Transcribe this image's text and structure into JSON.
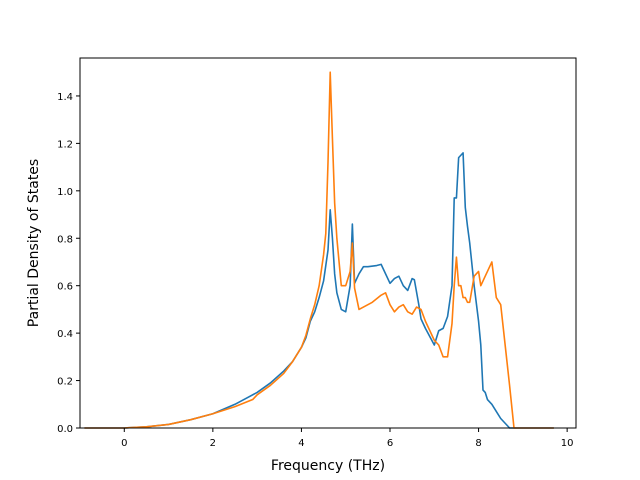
{
  "chart_data": {
    "type": "line",
    "title": "",
    "xlabel": "Frequency (THz)",
    "ylabel": "Partial Density of States",
    "xlim": [
      -1.0,
      10.2
    ],
    "ylim": [
      0.0,
      1.56
    ],
    "xticks": [
      0,
      2,
      4,
      6,
      8,
      10
    ],
    "yticks": [
      0.0,
      0.2,
      0.4,
      0.6,
      0.8,
      1.0,
      1.2,
      1.4
    ],
    "xtick_labels": [
      "0",
      "2",
      "4",
      "6",
      "8",
      "10"
    ],
    "ytick_labels": [
      "0.0",
      "0.2",
      "0.4",
      "0.6",
      "0.8",
      "1.0",
      "1.2",
      "1.4"
    ],
    "grid": false,
    "legend": "none",
    "series": [
      {
        "color": "#1f77b4",
        "x": [
          -0.9,
          0.0,
          0.5,
          1.0,
          1.5,
          2.0,
          2.5,
          2.8,
          3.0,
          3.3,
          3.6,
          3.8,
          4.0,
          4.1,
          4.2,
          4.3,
          4.4,
          4.5,
          4.6,
          4.65,
          4.7,
          4.75,
          4.8,
          4.9,
          5.0,
          5.1,
          5.15,
          5.2,
          5.3,
          5.4,
          5.5,
          5.7,
          5.8,
          6.0,
          6.1,
          6.2,
          6.3,
          6.4,
          6.5,
          6.55,
          6.65,
          6.7,
          6.8,
          7.0,
          7.1,
          7.2,
          7.3,
          7.4,
          7.45,
          7.5,
          7.55,
          7.6,
          7.65,
          7.7,
          7.75,
          7.8,
          7.9,
          8.0,
          8.05,
          8.1,
          8.15,
          8.2,
          8.3,
          8.4,
          8.5,
          8.6,
          8.7,
          8.8,
          9.0,
          9.7
        ],
        "y": [
          0.0,
          0.0,
          0.005,
          0.015,
          0.035,
          0.06,
          0.1,
          0.13,
          0.15,
          0.19,
          0.24,
          0.28,
          0.34,
          0.38,
          0.45,
          0.49,
          0.55,
          0.62,
          0.75,
          0.92,
          0.8,
          0.65,
          0.57,
          0.5,
          0.49,
          0.6,
          0.86,
          0.61,
          0.65,
          0.68,
          0.68,
          0.685,
          0.69,
          0.61,
          0.63,
          0.64,
          0.6,
          0.58,
          0.63,
          0.625,
          0.52,
          0.46,
          0.42,
          0.35,
          0.41,
          0.42,
          0.47,
          0.6,
          0.97,
          0.97,
          1.14,
          1.15,
          1.16,
          0.93,
          0.85,
          0.78,
          0.6,
          0.45,
          0.35,
          0.16,
          0.15,
          0.12,
          0.1,
          0.07,
          0.04,
          0.02,
          0.0,
          0.0,
          0.0,
          0.0
        ]
      },
      {
        "color": "#ff7f0e",
        "x": [
          -0.9,
          0.0,
          0.5,
          1.0,
          1.5,
          2.0,
          2.5,
          2.9,
          3.0,
          3.3,
          3.6,
          3.8,
          4.0,
          4.1,
          4.2,
          4.3,
          4.4,
          4.5,
          4.55,
          4.6,
          4.65,
          4.7,
          4.75,
          4.8,
          4.9,
          5.0,
          5.1,
          5.15,
          5.2,
          5.3,
          5.4,
          5.6,
          5.8,
          5.9,
          6.0,
          6.1,
          6.2,
          6.3,
          6.4,
          6.5,
          6.6,
          6.7,
          6.8,
          7.0,
          7.1,
          7.2,
          7.3,
          7.4,
          7.45,
          7.5,
          7.55,
          7.6,
          7.65,
          7.7,
          7.75,
          7.8,
          7.9,
          8.0,
          8.05,
          8.1,
          8.15,
          8.2,
          8.25,
          8.3,
          8.4,
          8.5,
          8.6,
          8.7,
          8.8,
          9.0,
          9.7
        ],
        "y": [
          0.0,
          0.0,
          0.005,
          0.015,
          0.035,
          0.06,
          0.09,
          0.12,
          0.14,
          0.18,
          0.23,
          0.28,
          0.34,
          0.39,
          0.46,
          0.52,
          0.6,
          0.73,
          0.82,
          1.12,
          1.5,
          1.22,
          0.95,
          0.8,
          0.6,
          0.6,
          0.66,
          0.78,
          0.59,
          0.5,
          0.51,
          0.53,
          0.56,
          0.57,
          0.52,
          0.49,
          0.51,
          0.52,
          0.49,
          0.48,
          0.51,
          0.5,
          0.45,
          0.37,
          0.35,
          0.3,
          0.3,
          0.44,
          0.6,
          0.72,
          0.6,
          0.6,
          0.55,
          0.55,
          0.53,
          0.53,
          0.64,
          0.66,
          0.6,
          0.62,
          0.64,
          0.66,
          0.68,
          0.7,
          0.55,
          0.52,
          0.35,
          0.18,
          0.0,
          0.0,
          0.0
        ]
      }
    ]
  }
}
